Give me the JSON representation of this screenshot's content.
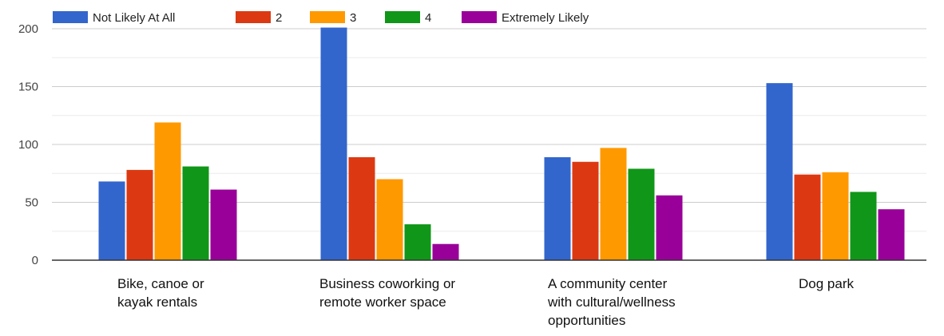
{
  "chart_data": {
    "type": "bar",
    "categories": [
      "Bike, canoe or kayak rentals",
      "Business coworking or remote worker space",
      "A community center with cultural/wellness opportunities",
      "Dog park"
    ],
    "category_label_lines": [
      [
        "Bike, canoe or",
        "kayak rentals"
      ],
      [
        "Business coworking or",
        "remote worker space"
      ],
      [
        "A community center",
        "with cultural/wellness",
        "opportunities"
      ],
      [
        "Dog park"
      ]
    ],
    "series": [
      {
        "name": "Not Likely At All",
        "color": "#3366cc",
        "values": [
          68,
          201,
          89,
          153
        ]
      },
      {
        "name": "2",
        "color": "#dc3912",
        "values": [
          78,
          89,
          85,
          74
        ]
      },
      {
        "name": "3",
        "color": "#ff9900",
        "values": [
          119,
          70,
          97,
          76
        ]
      },
      {
        "name": "4",
        "color": "#109618",
        "values": [
          81,
          31,
          79,
          59
        ]
      },
      {
        "name": "Extremely Likely",
        "color": "#990099",
        "values": [
          61,
          14,
          56,
          44
        ]
      }
    ],
    "yticks": [
      "0",
      "50",
      "100",
      "150",
      "200"
    ],
    "ylim": [
      0,
      200
    ],
    "legend_position": "top",
    "grid": true
  }
}
